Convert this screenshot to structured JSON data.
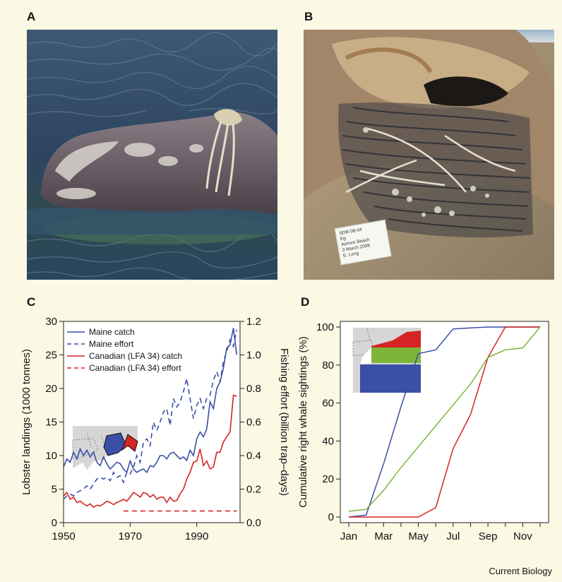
{
  "panels": {
    "a": "A",
    "b": "B",
    "c": "C",
    "d": "D"
  },
  "photo_a": {
    "description_icon": "whale-head-with-rope-icon"
  },
  "photo_b": {
    "description_icon": "stranded-whale-baleen-icon",
    "label_lines": [
      "SDR-08-04",
      "Eg",
      "Ashore Beach",
      "3 March 2008",
      "E. Long"
    ]
  },
  "credit": "Current Biology",
  "colors": {
    "blue": "#3a4fa6",
    "red": "#d42424",
    "green": "#7cb53a",
    "background": "#fbf8e4"
  },
  "chart_data": [
    {
      "id": "C",
      "type": "line",
      "xlabel": "",
      "ylabel": "Lobster landings (1000 tonnes)",
      "y2label": "Fishing effort (billion trap–days)",
      "xlim": [
        1950,
        2003
      ],
      "ylim": [
        0,
        30
      ],
      "y2lim": [
        0,
        1.2
      ],
      "xticks": [
        1950,
        1970,
        1990
      ],
      "yticks": [
        0,
        5,
        10,
        15,
        20,
        25,
        30
      ],
      "y2ticks": [
        "0.0",
        "0.2",
        "0.4",
        "0.6",
        "0.8",
        "1.0",
        "1.2"
      ],
      "legend_placement": "top-left",
      "series": [
        {
          "name": "Maine catch",
          "axis": "left",
          "style": "solid",
          "color": "#3a4fa6",
          "x": [
            1950,
            1951,
            1952,
            1953,
            1954,
            1955,
            1956,
            1957,
            1958,
            1959,
            1960,
            1961,
            1962,
            1963,
            1964,
            1965,
            1966,
            1967,
            1968,
            1969,
            1970,
            1971,
            1972,
            1973,
            1974,
            1975,
            1976,
            1977,
            1978,
            1979,
            1980,
            1981,
            1982,
            1983,
            1984,
            1985,
            1986,
            1987,
            1988,
            1989,
            1990,
            1991,
            1992,
            1993,
            1994,
            1995,
            1996,
            1997,
            1998,
            1999,
            2000,
            2001,
            2002
          ],
          "values": [
            8.3,
            9.5,
            9.0,
            10.5,
            9.5,
            11.0,
            10.0,
            10.8,
            9.8,
            10.5,
            9.0,
            8.5,
            9.8,
            8.8,
            8.0,
            8.5,
            9.0,
            8.8,
            8.0,
            7.5,
            9.2,
            8.0,
            7.5,
            7.8,
            8.0,
            7.5,
            8.5,
            8.3,
            9.0,
            10.0,
            10.0,
            9.5,
            10.3,
            10.5,
            10.0,
            9.5,
            9.8,
            9.3,
            10.8,
            10.0,
            12.5,
            13.5,
            12.8,
            14.0,
            18.0,
            17.0,
            20.0,
            21.0,
            23.0,
            26.0,
            26.5,
            29.0,
            25.0
          ]
        },
        {
          "name": "Maine effort",
          "axis": "right",
          "style": "dashed",
          "color": "#3a4fa6",
          "x": [
            1950,
            1951,
            1952,
            1953,
            1954,
            1955,
            1956,
            1957,
            1958,
            1959,
            1960,
            1961,
            1962,
            1963,
            1964,
            1965,
            1966,
            1967,
            1968,
            1969,
            1970,
            1971,
            1972,
            1973,
            1974,
            1975,
            1976,
            1977,
            1978,
            1979,
            1980,
            1981,
            1982,
            1983,
            1984,
            1985,
            1986,
            1987,
            1988,
            1989,
            1990,
            1991,
            1992,
            1993,
            1994,
            1995,
            1996,
            1997,
            1998,
            1999,
            2000,
            2001,
            2002
          ],
          "values": [
            0.14,
            0.16,
            0.17,
            0.16,
            0.18,
            0.19,
            0.2,
            0.22,
            0.2,
            0.23,
            0.26,
            0.27,
            0.26,
            0.27,
            0.25,
            0.3,
            0.27,
            0.28,
            0.24,
            0.3,
            0.29,
            0.33,
            0.4,
            0.36,
            0.48,
            0.5,
            0.46,
            0.6,
            0.55,
            0.6,
            0.66,
            0.68,
            0.58,
            0.74,
            0.69,
            0.72,
            0.78,
            0.86,
            0.74,
            0.62,
            0.7,
            0.74,
            0.68,
            0.74,
            0.76,
            0.85,
            0.9,
            0.84,
            0.96,
            1.02,
            1.09,
            1.05,
            1.15
          ]
        },
        {
          "name": "Canadian (LFA 34) catch",
          "axis": "left",
          "style": "solid",
          "color": "#d42424",
          "x": [
            1950,
            1951,
            1952,
            1953,
            1954,
            1955,
            1956,
            1957,
            1958,
            1959,
            1960,
            1961,
            1962,
            1963,
            1964,
            1965,
            1966,
            1967,
            1968,
            1969,
            1970,
            1971,
            1972,
            1973,
            1974,
            1975,
            1976,
            1977,
            1978,
            1979,
            1980,
            1981,
            1982,
            1983,
            1984,
            1985,
            1986,
            1987,
            1988,
            1989,
            1990,
            1991,
            1992,
            1993,
            1994,
            1995,
            1996,
            1997,
            1998,
            1999,
            2000,
            2001,
            2002
          ],
          "values": [
            4.0,
            4.5,
            3.5,
            3.8,
            3.0,
            3.2,
            2.8,
            2.5,
            2.8,
            2.3,
            2.6,
            2.5,
            2.8,
            3.2,
            3.0,
            2.7,
            3.0,
            3.2,
            3.5,
            3.2,
            3.8,
            4.5,
            4.2,
            3.8,
            4.5,
            4.3,
            3.8,
            4.2,
            3.5,
            3.8,
            3.8,
            3.0,
            3.8,
            3.2,
            3.3,
            4.3,
            5.0,
            6.5,
            7.5,
            9.0,
            9.2,
            11.0,
            8.5,
            9.2,
            8.0,
            8.3,
            10.5,
            10.5,
            12.0,
            12.8,
            13.5,
            19.0,
            18.8
          ]
        },
        {
          "name": "Canadian (LFA 34) effort",
          "axis": "right",
          "style": "dashed",
          "color": "#d42424",
          "x": [
            1968,
            2002
          ],
          "values": [
            0.07,
            0.07
          ]
        }
      ]
    },
    {
      "id": "D",
      "type": "line",
      "xlabel": "",
      "ylabel": "Cumulative right whale sightings (%)",
      "ylim": [
        0,
        100
      ],
      "yticks": [
        0,
        20,
        40,
        60,
        80,
        100
      ],
      "categories": [
        "Jan",
        "Feb",
        "Mar",
        "Apr",
        "May",
        "Jun",
        "Jul",
        "Aug",
        "Sep",
        "Oct",
        "Nov",
        "Dec"
      ],
      "xtick_labels": [
        "Jan",
        "Mar",
        "May",
        "Jul",
        "Sep",
        "Nov"
      ],
      "series": [
        {
          "color": "#3a4fa6",
          "values": [
            0,
            1,
            28,
            58,
            86,
            88,
            99,
            99.5,
            100,
            100,
            100,
            100
          ]
        },
        {
          "color": "#d42424",
          "values": [
            0,
            0,
            0,
            0,
            0,
            5,
            36,
            54,
            84,
            100,
            100,
            100
          ]
        },
        {
          "color": "#7cb53a",
          "values": [
            3,
            4,
            14,
            26,
            37,
            48,
            59,
            70,
            84,
            88,
            89,
            100
          ]
        }
      ]
    }
  ]
}
